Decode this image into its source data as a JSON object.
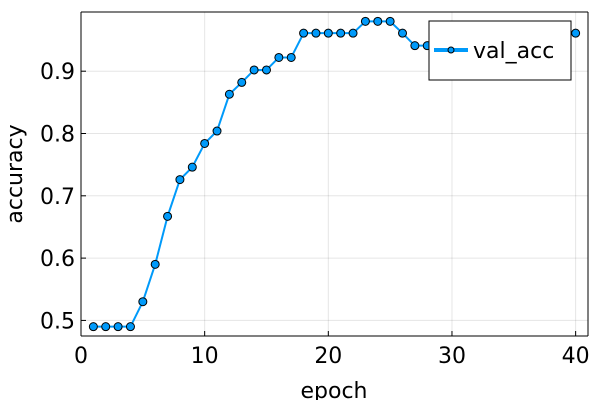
{
  "chart_data": {
    "type": "line",
    "xlabel": "epoch",
    "ylabel": "accuracy",
    "xlim": [
      0,
      41
    ],
    "ylim": [
      0.475,
      0.995
    ],
    "xticks": [
      0,
      10,
      20,
      30,
      40
    ],
    "yticks": [
      0.5,
      0.6,
      0.7,
      0.8,
      0.9
    ],
    "ytick_labels": [
      "0.5",
      "0.6",
      "0.7",
      "0.8",
      "0.9"
    ],
    "grid": true,
    "legend_position": "top-right",
    "series": [
      {
        "name": "val_acc",
        "color": "#009AFA",
        "marker": "circle",
        "x": [
          1,
          2,
          3,
          4,
          5,
          6,
          7,
          8,
          9,
          10,
          11,
          12,
          13,
          14,
          15,
          16,
          17,
          18,
          19,
          20,
          21,
          22,
          23,
          24,
          25,
          26,
          27,
          28,
          29,
          30,
          31,
          32,
          33,
          34,
          35,
          36,
          37,
          38,
          39,
          40
        ],
        "y": [
          0.49,
          0.49,
          0.49,
          0.49,
          0.53,
          0.59,
          0.667,
          0.726,
          0.746,
          0.784,
          0.804,
          0.863,
          0.882,
          0.902,
          0.902,
          0.922,
          0.922,
          0.961,
          0.961,
          0.961,
          0.961,
          0.961,
          0.98,
          0.98,
          0.98,
          0.961,
          0.941,
          0.941,
          0.941,
          0.941,
          0.941,
          0.941,
          0.941,
          0.941,
          0.941,
          0.941,
          0.941,
          0.941,
          0.961,
          0.961
        ]
      }
    ]
  }
}
